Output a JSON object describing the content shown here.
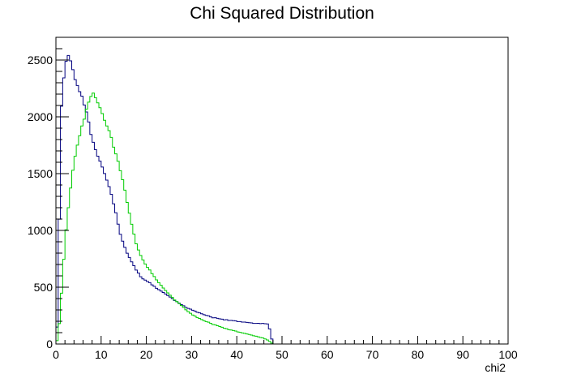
{
  "chart_data": {
    "type": "histogram-step",
    "title": "Chi Squared Distribution",
    "xlabel": "chi2",
    "ylabel": "",
    "xlim": [
      0,
      100
    ],
    "ylim": [
      0,
      2700
    ],
    "x_ticks": [
      "0",
      "10",
      "20",
      "30",
      "40",
      "50",
      "60",
      "70",
      "80",
      "90",
      "100"
    ],
    "y_ticks": [
      "0",
      "500",
      "1000",
      "1500",
      "2000",
      "2500"
    ],
    "bin_width": 0.5,
    "grid": false,
    "series": [
      {
        "color": "#00007f",
        "points": [
          [
            0,
            0
          ],
          [
            0.5,
            300
          ],
          [
            1,
            1900
          ],
          [
            1.5,
            2300
          ],
          [
            2,
            2400
          ],
          [
            2.5,
            2560
          ],
          [
            3,
            2520
          ],
          [
            3.5,
            2470
          ],
          [
            4,
            2350
          ],
          [
            5,
            2250
          ],
          [
            6,
            2150
          ],
          [
            7,
            2000
          ],
          [
            8,
            1800
          ],
          [
            9,
            1680
          ],
          [
            10,
            1580
          ],
          [
            11,
            1480
          ],
          [
            12,
            1350
          ],
          [
            13,
            1200
          ],
          [
            14,
            1000
          ],
          [
            15,
            870
          ],
          [
            16,
            780
          ],
          [
            17,
            700
          ],
          [
            18,
            640
          ],
          [
            19,
            580
          ],
          [
            20,
            560
          ],
          [
            22,
            500
          ],
          [
            25,
            420
          ],
          [
            28,
            340
          ],
          [
            30,
            300
          ],
          [
            32,
            270
          ],
          [
            35,
            230
          ],
          [
            38,
            210
          ],
          [
            40,
            200
          ],
          [
            42,
            190
          ],
          [
            44,
            180
          ],
          [
            46,
            180
          ],
          [
            47,
            175
          ],
          [
            48,
            0
          ],
          [
            100,
            0
          ]
        ]
      },
      {
        "color": "#00cc00",
        "points": [
          [
            0,
            0
          ],
          [
            0.5,
            60
          ],
          [
            1,
            300
          ],
          [
            1.5,
            600
          ],
          [
            2,
            900
          ],
          [
            3,
            1300
          ],
          [
            4,
            1600
          ],
          [
            5,
            1800
          ],
          [
            6,
            1950
          ],
          [
            7,
            2100
          ],
          [
            7.5,
            2150
          ],
          [
            8,
            2220
          ],
          [
            9,
            2150
          ],
          [
            10,
            2050
          ],
          [
            11,
            1950
          ],
          [
            12,
            1850
          ],
          [
            13,
            1700
          ],
          [
            14,
            1570
          ],
          [
            15,
            1400
          ],
          [
            16,
            1200
          ],
          [
            17,
            1000
          ],
          [
            18,
            850
          ],
          [
            19,
            760
          ],
          [
            20,
            690
          ],
          [
            22,
            580
          ],
          [
            24,
            480
          ],
          [
            26,
            400
          ],
          [
            28,
            330
          ],
          [
            30,
            260
          ],
          [
            32,
            220
          ],
          [
            35,
            170
          ],
          [
            38,
            130
          ],
          [
            40,
            110
          ],
          [
            42,
            90
          ],
          [
            44,
            70
          ],
          [
            46,
            50
          ],
          [
            47,
            30
          ],
          [
            48,
            0
          ],
          [
            100,
            0
          ]
        ]
      }
    ]
  }
}
